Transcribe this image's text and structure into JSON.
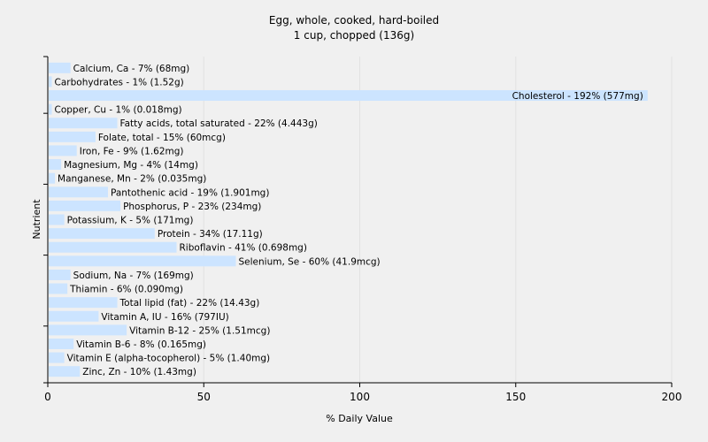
{
  "chart_data": {
    "type": "bar",
    "orientation": "horizontal",
    "title": "Egg, whole, cooked, hard-boiled",
    "subtitle": "1 cup, chopped (136g)",
    "xlabel": "% Daily Value",
    "ylabel": "Nutrient",
    "xlim": [
      0,
      200
    ],
    "xticks": [
      0,
      50,
      100,
      150,
      200
    ],
    "grid": true,
    "bar_color": "#cce4ff",
    "grid_color": "#e2e2e2",
    "bars": [
      {
        "label": "Calcium, Ca - 7% (68mg)",
        "value": 7
      },
      {
        "label": "Carbohydrates - 1% (1.52g)",
        "value": 1
      },
      {
        "label": "Cholesterol - 192% (577mg)",
        "value": 192
      },
      {
        "label": "Copper, Cu - 1% (0.018mg)",
        "value": 1
      },
      {
        "label": "Fatty acids, total saturated - 22% (4.443g)",
        "value": 22
      },
      {
        "label": "Folate, total - 15% (60mcg)",
        "value": 15
      },
      {
        "label": "Iron, Fe - 9% (1.62mg)",
        "value": 9
      },
      {
        "label": "Magnesium, Mg - 4% (14mg)",
        "value": 4
      },
      {
        "label": "Manganese, Mn - 2% (0.035mg)",
        "value": 2
      },
      {
        "label": "Pantothenic acid - 19% (1.901mg)",
        "value": 19
      },
      {
        "label": "Phosphorus, P - 23% (234mg)",
        "value": 23
      },
      {
        "label": "Potassium, K - 5% (171mg)",
        "value": 5
      },
      {
        "label": "Protein - 34% (17.11g)",
        "value": 34
      },
      {
        "label": "Riboflavin - 41% (0.698mg)",
        "value": 41
      },
      {
        "label": "Selenium, Se - 60% (41.9mcg)",
        "value": 60
      },
      {
        "label": "Sodium, Na - 7% (169mg)",
        "value": 7
      },
      {
        "label": "Thiamin - 6% (0.090mg)",
        "value": 6
      },
      {
        "label": "Total lipid (fat) - 22% (14.43g)",
        "value": 22
      },
      {
        "label": "Vitamin A, IU - 16% (797IU)",
        "value": 16
      },
      {
        "label": "Vitamin B-12 - 25% (1.51mcg)",
        "value": 25
      },
      {
        "label": "Vitamin B-6 - 8% (0.165mg)",
        "value": 8
      },
      {
        "label": "Vitamin E (alpha-tocopherol) - 5% (1.40mg)",
        "value": 5
      },
      {
        "label": "Zinc, Zn - 10% (1.43mg)",
        "value": 10
      }
    ]
  }
}
